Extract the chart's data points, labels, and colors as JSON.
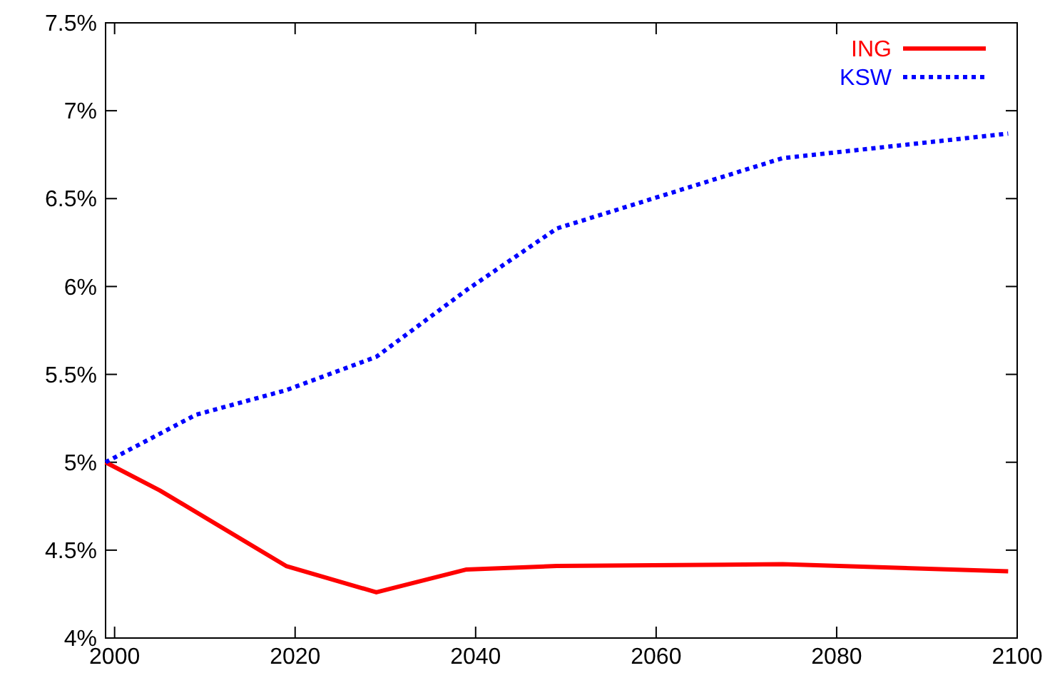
{
  "chart_data": {
    "type": "line",
    "x": [
      1999,
      2005,
      2019,
      2029,
      2039,
      2049,
      2074,
      2099
    ],
    "series": [
      {
        "name": "ING",
        "color": "#ff0000",
        "line_style": "solid",
        "values": [
          5.0,
          4.84,
          4.41,
          4.26,
          4.39,
          4.41,
          4.42,
          4.38
        ]
      },
      {
        "name": "KSW",
        "color": "#0000ff",
        "line_style": "dotted",
        "x": [
          1999,
          2009,
          2019,
          2029,
          2039,
          2049,
          2074,
          2099
        ],
        "values": [
          5.0,
          5.27,
          5.41,
          5.6,
          5.98,
          6.33,
          6.73,
          6.87
        ]
      }
    ],
    "xlim": [
      1999,
      2100
    ],
    "xticks": [
      2000,
      2020,
      2040,
      2060,
      2080,
      2100
    ],
    "ylim": [
      4,
      7.5
    ],
    "yticks": [
      {
        "value": 4,
        "label": "4%"
      },
      {
        "value": 4.5,
        "label": "4.5%"
      },
      {
        "value": 5,
        "label": "5%"
      },
      {
        "value": 5.5,
        "label": "5.5%"
      },
      {
        "value": 6,
        "label": "6%"
      },
      {
        "value": 6.5,
        "label": "6.5%"
      },
      {
        "value": 7,
        "label": "7%"
      },
      {
        "value": 7.5,
        "label": "7.5%"
      }
    ],
    "legend": "top right",
    "grid": false,
    "marker": "none"
  }
}
